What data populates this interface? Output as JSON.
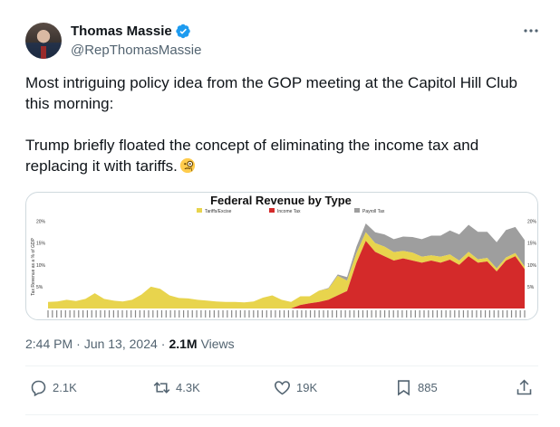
{
  "author": {
    "display_name": "Thomas Massie",
    "handle": "@RepThomasMassie",
    "verified": true,
    "verified_color": "#1d9bf0"
  },
  "tweet": {
    "paragraph1": "Most intriguing policy idea from the GOP meeting at the Capitol Hill Club this morning:",
    "paragraph2": "Trump briefly floated the concept of eliminating the income tax and replacing it with tariffs.",
    "emoji": "face-with-monocle"
  },
  "media": {
    "chart_data": {
      "type": "area",
      "title": "Federal Revenue by Type",
      "ylabel": "Tax Revenue as a % of GDP",
      "ylim": [
        0,
        22
      ],
      "yticks": [
        "20%",
        "15%",
        "10%",
        "5%"
      ],
      "legend_placement": "top-center",
      "series": [
        {
          "name": "Tariffs/Excise",
          "color": "#e8d44d",
          "values": [
            1.5,
            1.6,
            2.0,
            1.7,
            2.2,
            3.5,
            2.2,
            1.8,
            1.6,
            2.0,
            3.2,
            5.0,
            4.5,
            3.0,
            2.4,
            2.3,
            2.0,
            1.8,
            1.6,
            1.5,
            1.5,
            1.4,
            1.6,
            2.5,
            3.0,
            2.0,
            1.5,
            2.0,
            1.6,
            2.6,
            2.5,
            4.5,
            2.4,
            2.2,
            2.0,
            2.0,
            2.2,
            1.9,
            1.7,
            1.8,
            1.4,
            1.2,
            1.4,
            1.2,
            1.0,
            1.0,
            0.8,
            0.8,
            0.7,
            0.7,
            0.7,
            0.6
          ]
        },
        {
          "name": "Income Tax",
          "color": "#d42a2a",
          "values": [
            0,
            0,
            0,
            0,
            0,
            0,
            0,
            0,
            0,
            0,
            0,
            0,
            0,
            0,
            0,
            0,
            0,
            0,
            0,
            0,
            0,
            0,
            0,
            0,
            0,
            0,
            0,
            0.8,
            1.2,
            1.5,
            2.0,
            3.0,
            4.0,
            10.5,
            15.5,
            13.0,
            12.0,
            11.0,
            11.5,
            11.0,
            10.5,
            11.0,
            10.5,
            11.2,
            10.0,
            12.0,
            10.5,
            10.8,
            8.5,
            11.0,
            12.0,
            9.0
          ]
        },
        {
          "name": "Payroll Tax",
          "color": "#9e9e9e",
          "values": [
            0,
            0,
            0,
            0,
            0,
            0,
            0,
            0,
            0,
            0,
            0,
            0,
            0,
            0,
            0,
            0,
            0,
            0,
            0,
            0,
            0,
            0,
            0,
            0,
            0,
            0,
            0,
            0,
            0,
            0,
            0.2,
            0.3,
            0.8,
            1.5,
            2.0,
            2.5,
            2.8,
            3.0,
            3.3,
            3.6,
            4.0,
            4.5,
            4.8,
            5.5,
            6.0,
            6.2,
            6.3,
            6.0,
            6.0,
            6.3,
            6.0,
            6.1
          ]
        }
      ]
    }
  },
  "meta": {
    "time": "2:44 PM",
    "separator": "·",
    "date": "Jun 13, 2024",
    "separator2": "·",
    "views_count": "2.1M",
    "views_label": "Views"
  },
  "actions": {
    "replies": "2.1K",
    "reposts": "4.3K",
    "likes": "19K",
    "bookmarks": "885"
  },
  "colors": {
    "text_primary": "#0f1419",
    "text_secondary": "#536471",
    "border": "#cfd9de"
  }
}
